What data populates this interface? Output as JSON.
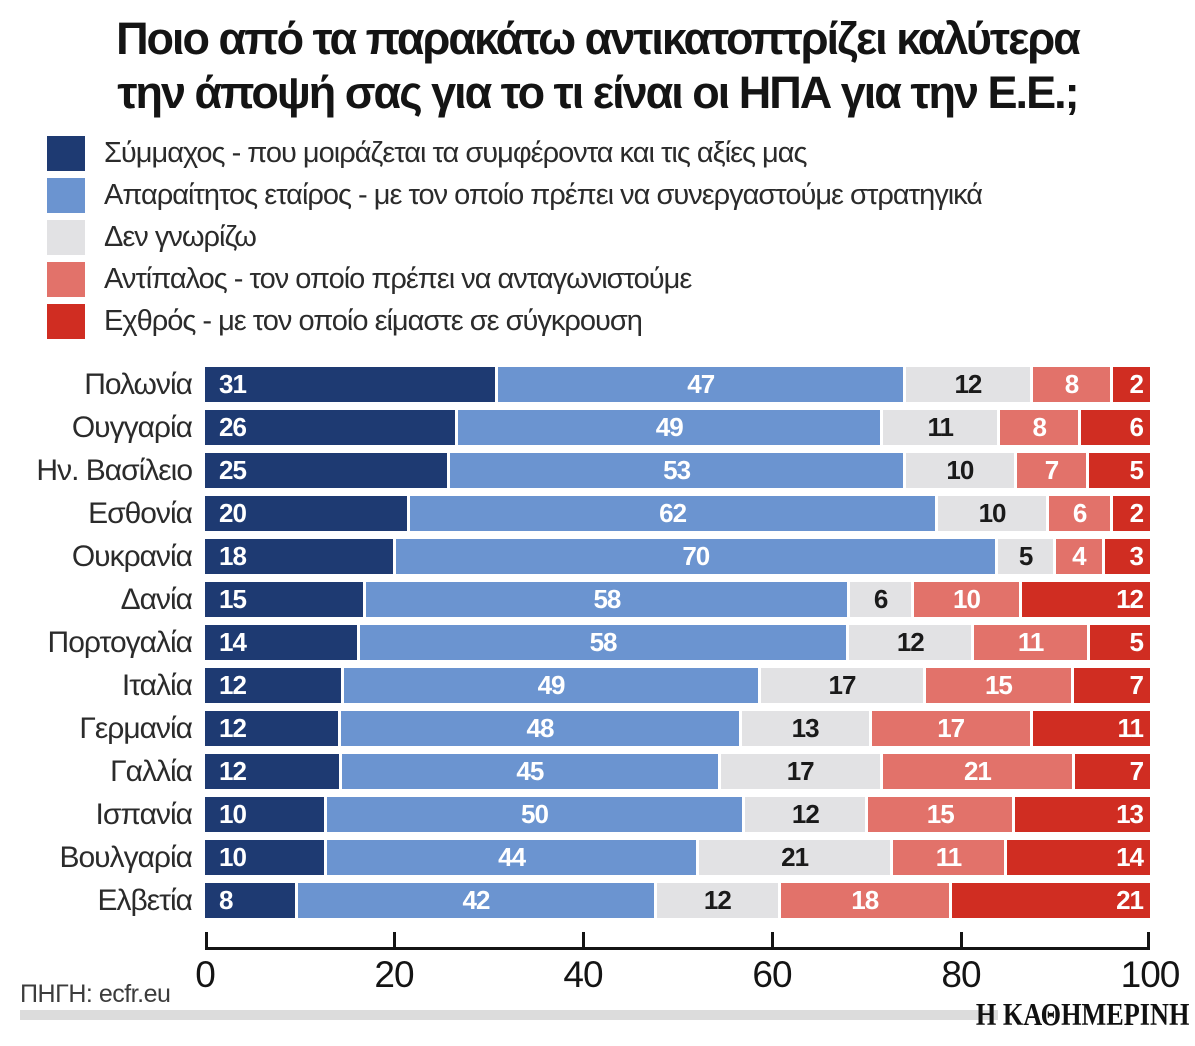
{
  "title": {
    "line1": "Ποιο από τα παρακάτω αντικατοπτρίζει καλύτερα",
    "line2": "την άποψή σας για το τι είναι οι ΗΠΑ για την Ε.Ε.;"
  },
  "footer": {
    "source": "ΠΗΓΗ: ecfr.eu",
    "brand": "Η ΚΑΘΗΜΕΡΙΝΗ"
  },
  "chart_data": {
    "type": "bar",
    "orientation": "horizontal",
    "stacked": true,
    "title": "Ποιο από τα παρακάτω αντικατοπτρίζει καλύτερα την άποψή σας για το τι είναι οι ΗΠΑ για την Ε.Ε.;",
    "xlabel": "",
    "ylabel": "",
    "xlim": [
      0,
      100
    ],
    "x_ticks": [
      0,
      20,
      40,
      60,
      80,
      100
    ],
    "grid": false,
    "legend_position": "top-left",
    "categories": [
      "Πολωνία",
      "Ουγγαρία",
      "Ην. Βασίλειο",
      "Εσθονία",
      "Ουκρανία",
      "Δανία",
      "Πορτογαλία",
      "Ιταλία",
      "Γερμανία",
      "Γαλλία",
      "Ισπανία",
      "Βουλγαρία",
      "Ελβετία"
    ],
    "series": [
      {
        "key": "ally",
        "name": "Σύμμαχος - που μοιράζεται τα συμφέροντα και τις αξίες μας",
        "color": "#1e3a72",
        "value_color": "#ffffff",
        "values": [
          31,
          26,
          25,
          20,
          18,
          15,
          14,
          12,
          12,
          12,
          10,
          10,
          8
        ]
      },
      {
        "key": "necessary-partner",
        "name": "Απαραίτητος εταίρος - με τον οποίο πρέπει να συνεργαστούμε στρατηγικά",
        "color": "#6b94d0",
        "value_color": "#ffffff",
        "values": [
          47,
          49,
          53,
          62,
          70,
          58,
          58,
          49,
          48,
          45,
          50,
          44,
          42
        ]
      },
      {
        "key": "dont-know",
        "name": "Δεν γνωρίζω",
        "color": "#e2e2e4",
        "value_color": "#1a1a1a",
        "values": [
          12,
          11,
          10,
          10,
          5,
          6,
          12,
          17,
          13,
          17,
          12,
          21,
          12
        ]
      },
      {
        "key": "rival",
        "name": "Αντίπαλος - τον οποίο πρέπει να ανταγωνιστούμε",
        "color": "#e2726a",
        "value_color": "#ffffff",
        "values": [
          8,
          8,
          7,
          6,
          4,
          10,
          11,
          15,
          17,
          21,
          15,
          11,
          18
        ]
      },
      {
        "key": "enemy",
        "name": "Εχθρός - με τον οποίο είμαστε σε σύγκρουση",
        "color": "#d02d22",
        "value_color": "#ffffff",
        "values": [
          2,
          6,
          5,
          2,
          3,
          12,
          5,
          7,
          11,
          7,
          13,
          14,
          21
        ]
      }
    ]
  }
}
